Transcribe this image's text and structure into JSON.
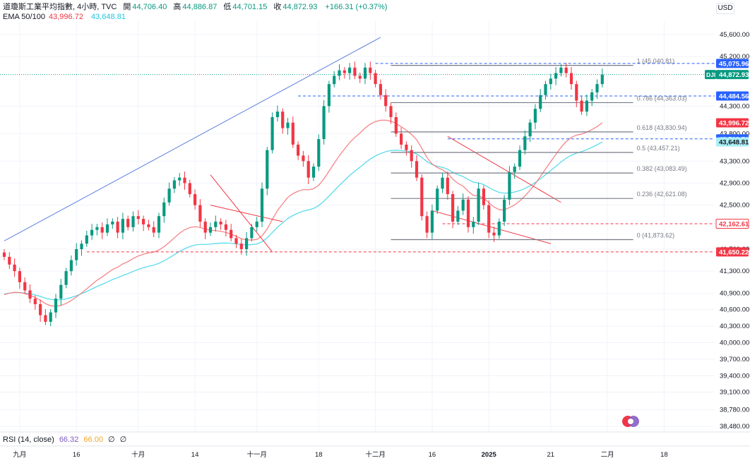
{
  "header": {
    "title": "道瓊斯工業平均指數, 4小時, TVC",
    "open_label": "開",
    "open": "44,706.40",
    "high_label": "高",
    "high": "44,886.87",
    "low_label": "低",
    "low": "44,701.15",
    "close_label": "收",
    "close": "44,872.93",
    "change": "+166.31 (+0.37%)",
    "ema_label": "EMA 50/100",
    "ema50": "43,996.72",
    "ema100": "43,648.81",
    "currency": "USD"
  },
  "rsi": {
    "label": "RSI (14, close)",
    "value1": "66.32",
    "value2": "66.00",
    "value3": "∅",
    "value4": "∅"
  },
  "colors": {
    "up": "#089981",
    "down": "#f23645",
    "ema50": "#f77c80",
    "ema100": "#4dd9ea",
    "trend_blue": "#5b7fe0",
    "fib_grey": "#787b86",
    "dashed_blue": "#2962ff",
    "dashed_red": "#f23645"
  },
  "chart_data": {
    "type": "candlestick",
    "y_axis": {
      "ticks": [
        "45,600.00",
        "45,200.00",
        "44,300.00",
        "43,800.00",
        "43,300.00",
        "42,900.00",
        "42,500.00",
        "41,700.00",
        "41,300.00",
        "40,900.00",
        "40,600.00",
        "40,300.00",
        "40,000.00",
        "39,700.00",
        "39,400.00",
        "39,100.00",
        "38,780.00",
        "38,480.00"
      ],
      "tick_values": [
        45600,
        45200,
        44300,
        43800,
        43300,
        42900,
        42500,
        41700,
        41300,
        40900,
        40600,
        40300,
        40000,
        39700,
        39400,
        39100,
        38780,
        38480
      ],
      "ylim": [
        38400,
        46100
      ]
    },
    "x_axis": {
      "ticks": [
        "九月",
        "16",
        "十月",
        "14",
        "十一月",
        "18",
        "十二月",
        "16",
        "2025",
        "21",
        "二月",
        "18"
      ],
      "tick_index": [
        3,
        14,
        26,
        37,
        49,
        61,
        72,
        83,
        94,
        106,
        117,
        128
      ]
    },
    "price_labels": [
      {
        "text": "45,075.96",
        "value": 45075.96,
        "style": "blue"
      },
      {
        "text": "44,872.93",
        "value": 44872.93,
        "style": "green",
        "tag": "DJI"
      },
      {
        "text": "44,484.56",
        "value": 44484.56,
        "style": "blue"
      },
      {
        "text": "43,996.72",
        "value": 43996.72,
        "style": "red"
      },
      {
        "text": "43,703.76",
        "value": 43703.76,
        "style": "blue"
      },
      {
        "text": "43,648.81",
        "value": 43648.81,
        "style": "cyan"
      },
      {
        "text": "42,162.61",
        "value": 42162.61,
        "style": "redline"
      },
      {
        "text": "41,650.22",
        "value": 41650.22,
        "style": "red"
      }
    ],
    "fib_levels": [
      {
        "ratio": "1",
        "value": 45040.81,
        "text": "1 (45,040.81)"
      },
      {
        "ratio": "0.786",
        "value": 44363.03,
        "text": "0.786 (44,363.03)"
      },
      {
        "ratio": "0.618",
        "value": 43830.94,
        "text": "0.618 (43,830.94)"
      },
      {
        "ratio": "0.5",
        "value": 43457.21,
        "text": "0.5 (43,457.21)"
      },
      {
        "ratio": "0.382",
        "value": 43083.49,
        "text": "0.382 (43,083.49)"
      },
      {
        "ratio": "0.236",
        "value": 42621.08,
        "text": "0.236 (42,621.08)"
      },
      {
        "ratio": "0",
        "value": 41873.62,
        "text": "0 (41,873.62)"
      }
    ],
    "series": [
      {
        "name": "DJI",
        "closes": [
          41560,
          41420,
          41300,
          41100,
          40950,
          40800,
          40700,
          40500,
          40380,
          40550,
          40800,
          41050,
          41300,
          41500,
          41700,
          41800,
          41950,
          42050,
          42100,
          42000,
          42150,
          42200,
          42000,
          42250,
          42100,
          42300,
          42250,
          42150,
          42100,
          42000,
          42300,
          42550,
          42800,
          42950,
          43000,
          42900,
          42700,
          42500,
          42200,
          42000,
          42100,
          42200,
          42150,
          42050,
          41900,
          41800,
          41700,
          41900,
          42100,
          42200,
          42800,
          43500,
          44100,
          44200,
          43900,
          44000,
          43600,
          43400,
          43300,
          43000,
          43200,
          43700,
          44300,
          44700,
          44850,
          44950,
          44900,
          45000,
          44850,
          44800,
          45000,
          44900,
          44700,
          44500,
          44300,
          44100,
          43800,
          43600,
          43500,
          43300,
          43000,
          42300,
          42000,
          42400,
          42800,
          43000,
          42700,
          42200,
          42400,
          42600,
          42100,
          42200,
          42800,
          42500,
          42000,
          41950,
          42200,
          42600,
          43100,
          43200,
          43500,
          43750,
          44000,
          44250,
          44500,
          44700,
          44800,
          44900,
          45000,
          44900,
          44700,
          44400,
          44200,
          44400,
          44550,
          44700,
          44873
        ]
      },
      {
        "name": "EMA 50",
        "ref_index": 116,
        "ref_value": 43996.72
      },
      {
        "name": "EMA 100",
        "ref_index": 116,
        "ref_value": 43648.81
      }
    ],
    "last_close": 44872.93
  }
}
